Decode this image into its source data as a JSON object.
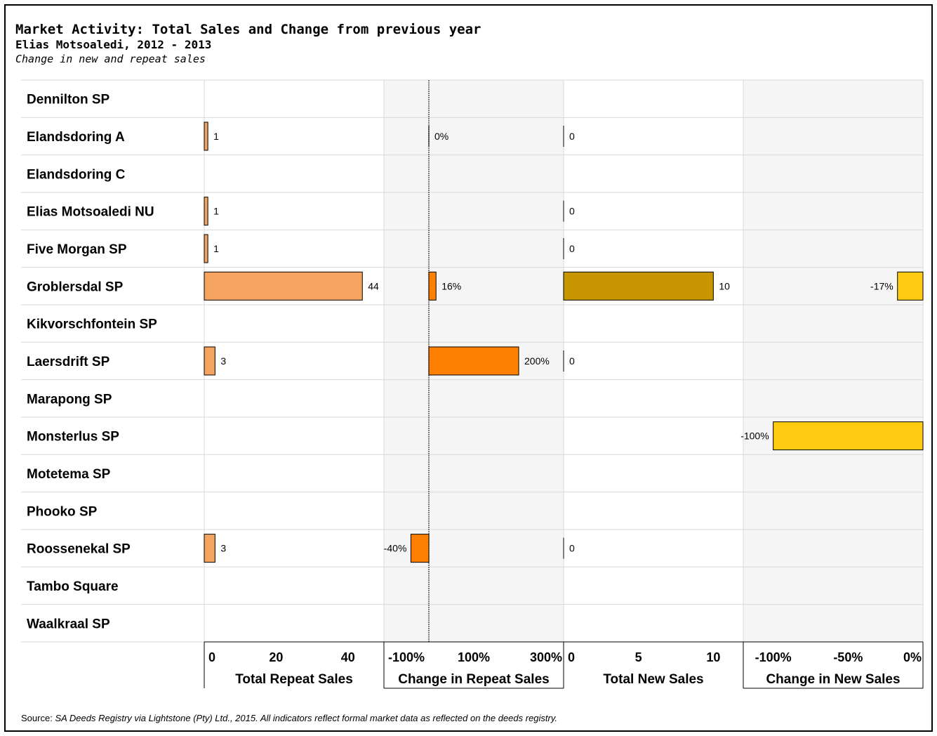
{
  "title": "Market Activity: Total Sales and Change from previous year",
  "subtitle": "Elias Motsoaledi, 2012 - 2013",
  "subtitle2": "Change in new and repeat sales",
  "source_label": "Source:",
  "source_text": "SA Deeds Registry via Lightstone (Pty) Ltd., 2015. All indicators reflect formal market data as reflected on the deeds registry.",
  "colors": {
    "repeat_total": "#F4A460",
    "repeat_change": "#FF8000",
    "new_total": "#C89600",
    "new_change": "#FFCC11",
    "shade": "#F5F5F5"
  },
  "chart_data": {
    "type": "bar",
    "orientation": "horizontal",
    "categories": [
      "Dennilton SP",
      "Elandsdoring A",
      "Elandsdoring C",
      "Elias Motsoaledi NU",
      "Five Morgan SP",
      "Groblersdal SP",
      "Kikvorschfontein SP",
      "Laersdrift SP",
      "Marapong SP",
      "Monsterlus SP",
      "Motetema SP",
      "Phooko SP",
      "Roossenekal SP",
      "Tambo Square",
      "Waalkraal  SP"
    ],
    "panels": [
      {
        "name": "Total Repeat Sales",
        "xlim": [
          0,
          50
        ],
        "ticks": [
          0,
          20,
          40
        ],
        "tick_labels": [
          "0",
          "20",
          "40"
        ],
        "values": [
          null,
          1,
          null,
          1,
          1,
          44,
          null,
          3,
          null,
          null,
          null,
          null,
          3,
          null,
          null
        ],
        "labels": [
          "",
          "1",
          "",
          "1",
          "1",
          "44",
          "",
          "3",
          "",
          "",
          "",
          "",
          "3",
          "",
          ""
        ]
      },
      {
        "name": "Change in Repeat Sales",
        "xlim": [
          -100,
          300
        ],
        "ticks": [
          -100,
          100,
          300
        ],
        "tick_labels": [
          "-100%",
          "100%",
          "300%"
        ],
        "values": [
          null,
          0,
          null,
          null,
          null,
          16,
          null,
          200,
          null,
          null,
          null,
          null,
          -40,
          null,
          null
        ],
        "labels": [
          "",
          "0%",
          "",
          "",
          "",
          "16%",
          "",
          "200%",
          "",
          "",
          "",
          "",
          "-40%",
          "",
          ""
        ]
      },
      {
        "name": "Total New Sales",
        "xlim": [
          0,
          12
        ],
        "ticks": [
          0,
          5,
          10
        ],
        "tick_labels": [
          "0",
          "5",
          "10"
        ],
        "values": [
          null,
          0,
          null,
          0,
          0,
          10,
          null,
          0,
          null,
          null,
          null,
          null,
          0,
          null,
          null
        ],
        "labels": [
          "",
          "0",
          "",
          "0",
          "0",
          "10",
          "",
          "0",
          "",
          "",
          "",
          "",
          "0",
          "",
          ""
        ]
      },
      {
        "name": "Change in New Sales",
        "xlim": [
          -120,
          0
        ],
        "ticks": [
          -100,
          -50,
          0
        ],
        "tick_labels": [
          "-100%",
          "-50%",
          "0%"
        ],
        "values": [
          null,
          null,
          null,
          null,
          null,
          -17,
          null,
          null,
          null,
          -100,
          null,
          null,
          null,
          null,
          null
        ],
        "labels": [
          "",
          "",
          "",
          "",
          "",
          "-17%",
          "",
          "",
          "",
          "-100%",
          "",
          "",
          "",
          "",
          ""
        ]
      }
    ]
  }
}
